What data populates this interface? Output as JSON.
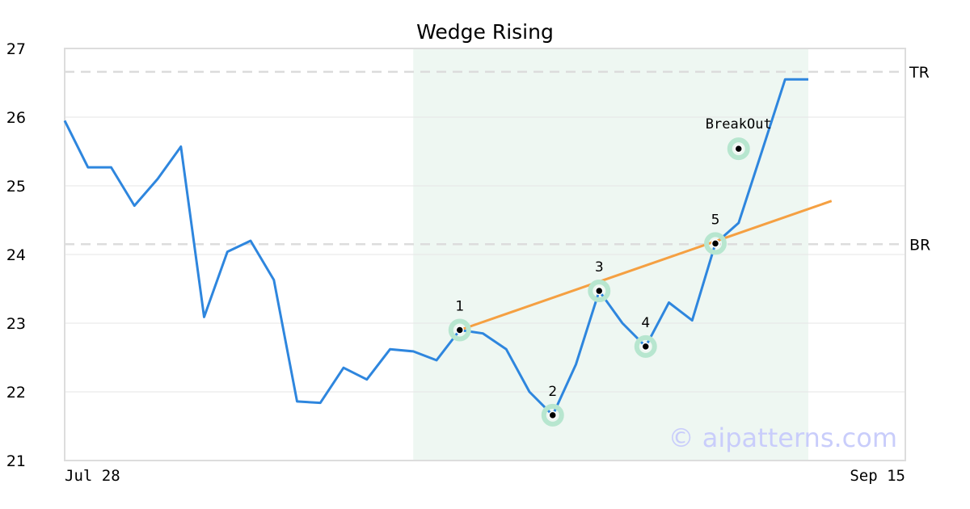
{
  "chart_data": {
    "type": "line",
    "title": "Wedge Rising",
    "ylim": [
      21,
      27
    ],
    "yticks": [
      "21",
      "22",
      "23",
      "24",
      "25",
      "26",
      "27"
    ],
    "x_start_label": "Jul 28",
    "x_end_label": "Sep 15",
    "grid": "horizontal",
    "series": [
      {
        "color": "#2e86de",
        "values": [
          25.95,
          25.27,
          25.27,
          24.71,
          25.1,
          25.57,
          23.09,
          24.04,
          24.2,
          23.63,
          21.86,
          21.84,
          22.35,
          22.18,
          22.62,
          22.59,
          22.46,
          22.9,
          22.85,
          22.62,
          22.0,
          21.66,
          22.4,
          23.47,
          23.0,
          22.66,
          23.3,
          23.04,
          24.16,
          24.46,
          25.5,
          26.55,
          26.55
        ]
      }
    ],
    "trendline": {
      "color": "#f5a042",
      "from": {
        "x": 17,
        "y": 22.9
      },
      "to": {
        "x": 33,
        "y": 24.78
      }
    },
    "reference_lines": [
      {
        "label": "TR",
        "y": 26.66
      },
      {
        "label": "BR",
        "y": 24.15
      }
    ],
    "shaded_region": {
      "x_from": 15,
      "x_to": 32,
      "color": "#eef7f2"
    },
    "pattern_points": [
      {
        "label": "1",
        "x": 17,
        "y": 22.9
      },
      {
        "label": "2",
        "x": 21,
        "y": 21.66
      },
      {
        "label": "3",
        "x": 23,
        "y": 23.47
      },
      {
        "label": "4",
        "x": 25,
        "y": 22.66
      },
      {
        "label": "5",
        "x": 28,
        "y": 24.16
      }
    ],
    "breakout": {
      "label": "BreakOut",
      "x": 29,
      "y": 25.54
    },
    "watermark": "© aipatterns.com"
  }
}
